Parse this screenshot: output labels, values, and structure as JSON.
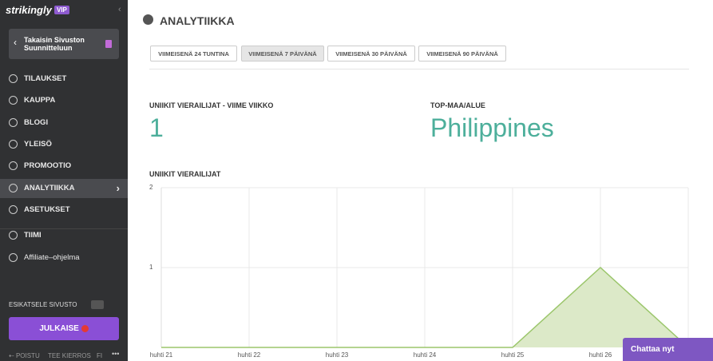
{
  "sidebar": {
    "logo": "strikingly",
    "badge": "VIP",
    "back": "Takaisin Sivuston Suunnitteluun",
    "menu": [
      "TILAUKSET",
      "KAUPPA",
      "BLOGI",
      "YLEISÖ",
      "PROMOOTIO",
      "ANALYTIIKKA",
      "ASETUKSET",
      "TIIMI",
      "Affiliate–ohjelma"
    ],
    "preview": "ESIKATSELE SIVUSTO",
    "publish": "JULKAISE",
    "footer": [
      "POISTU",
      "TEE KIERROS",
      "FI"
    ]
  },
  "header": {
    "title": "ANALYTIIKKA"
  },
  "tabs": [
    "VIIMEISENÄ 24 TUNTINA",
    "VIIMEISENÄ 7 PÄIVÄNÄ",
    "VIIMEISENÄ 30 PÄIVÄNÄ",
    "VIIMEISENÄ 90 PÄIVÄNÄ"
  ],
  "stats": [
    {
      "label": "UNIIKIT VIERAILIJAT - VIIME VIIKKO",
      "value": "1"
    },
    {
      "label": "TOP-MAA/ALUE",
      "value": "Philippines"
    }
  ],
  "chart_data": {
    "type": "area",
    "title": "UNIIKIT VIERAILIJAT",
    "categories": [
      "huhti 21",
      "huhti 22",
      "huhti 23",
      "huhti 24",
      "huhti 25",
      "huhti 26",
      null
    ],
    "values": [
      0,
      0,
      0,
      0,
      0,
      1,
      0
    ],
    "color": "#9bc66b",
    "ylim": [
      0,
      2
    ],
    "yticks": [
      1,
      2
    ],
    "grid": true
  },
  "chat": "Chattaa nyt"
}
